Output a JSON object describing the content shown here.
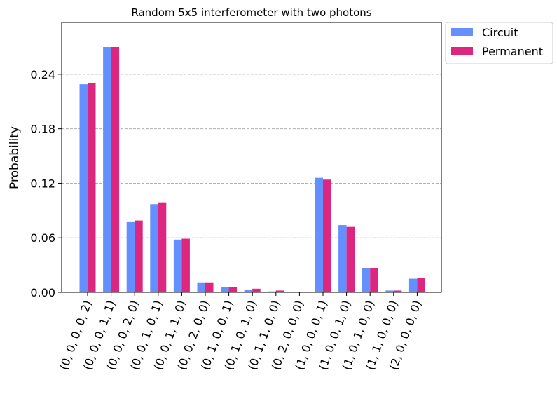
{
  "chart_data": {
    "type": "bar",
    "title": "Random 5x5 interferometer with two photons",
    "xlabel": "",
    "ylabel": "Probability",
    "ylim": [
      0,
      0.297
    ],
    "yticks": [
      "0.00",
      "0.06",
      "0.12",
      "0.18",
      "0.24"
    ],
    "ytick_values": [
      0,
      0.06,
      0.12,
      0.18,
      0.24
    ],
    "grid": "horizontal dashed",
    "legend_placement": "outside top-right",
    "categories": [
      "(0, 0, 0, 0, 2)",
      "(0, 0, 0, 1, 1)",
      "(0, 0, 0, 2, 0)",
      "(0, 0, 1, 0, 1)",
      "(0, 0, 1, 1, 0)",
      "(0, 0, 2, 0, 0)",
      "(0, 1, 0, 0, 1)",
      "(0, 1, 0, 1, 0)",
      "(0, 1, 1, 0, 0)",
      "(0, 2, 0, 0, 0)",
      "(1, 0, 0, 0, 1)",
      "(1, 0, 0, 1, 0)",
      "(1, 0, 1, 0, 0)",
      "(1, 1, 0, 0, 0)",
      "(2, 0, 0, 0, 0)"
    ],
    "series": [
      {
        "name": "Circuit",
        "color": "#648fff",
        "values": [
          0.229,
          0.27,
          0.078,
          0.097,
          0.058,
          0.011,
          0.006,
          0.003,
          0.001,
          0.0,
          0.126,
          0.074,
          0.027,
          0.002,
          0.015
        ]
      },
      {
        "name": "Permanent",
        "color": "#dc267f",
        "values": [
          0.23,
          0.27,
          0.079,
          0.099,
          0.059,
          0.011,
          0.006,
          0.004,
          0.002,
          0.0,
          0.124,
          0.072,
          0.027,
          0.002,
          0.016
        ]
      }
    ]
  }
}
